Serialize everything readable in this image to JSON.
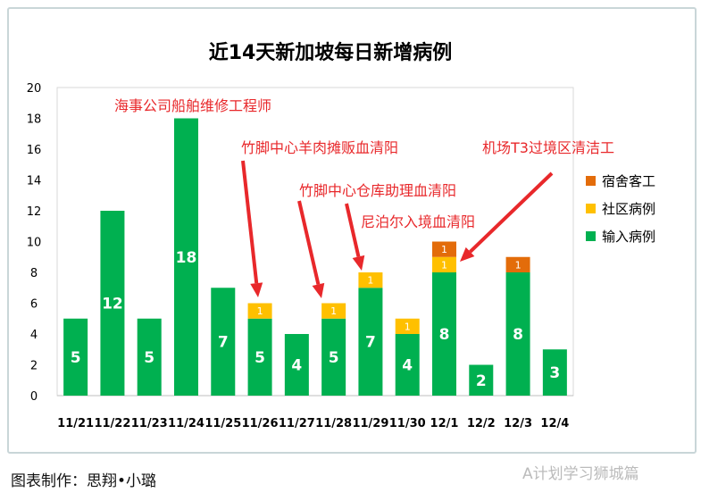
{
  "chart_data": {
    "type": "bar",
    "stacked": true,
    "title": "近14天新加坡每日新增病例",
    "categories": [
      "11/21",
      "11/22",
      "11/23",
      "11/24",
      "11/25",
      "11/26",
      "11/27",
      "11/28",
      "11/29",
      "11/30",
      "12/1",
      "12/2",
      "12/3",
      "12/4"
    ],
    "series": [
      {
        "name": "输入病例",
        "color": "#00b050",
        "values": [
          5,
          12,
          5,
          18,
          7,
          5,
          4,
          5,
          7,
          4,
          8,
          2,
          8,
          3
        ]
      },
      {
        "name": "社区病例",
        "color": "#ffc000",
        "values": [
          0,
          0,
          0,
          0,
          0,
          1,
          0,
          1,
          1,
          1,
          1,
          0,
          0,
          0
        ]
      },
      {
        "name": "宿舍客工",
        "color": "#e36c0a",
        "values": [
          0,
          0,
          0,
          0,
          0,
          0,
          0,
          0,
          0,
          0,
          1,
          0,
          1,
          0
        ]
      }
    ],
    "ylim": [
      0,
      20
    ],
    "yticks": [
      0,
      2,
      4,
      6,
      8,
      10,
      12,
      14,
      16,
      18,
      20
    ],
    "grid": false,
    "legend": "right",
    "annotations": [
      {
        "text": "海事公司船舶维修工程师",
        "category": null
      },
      {
        "text": "竹脚中心羊肉摊贩血清阳",
        "category": "11/26"
      },
      {
        "text": "竹脚中心仓库助理血清阳",
        "category": "11/28"
      },
      {
        "text": "尼泊尔入境血清阳",
        "category": "11/29"
      },
      {
        "text": "机场T3过境区清洁工",
        "category": "12/1"
      }
    ],
    "annotation_color": "#e8282b"
  },
  "footer": {
    "credit": "图表制作：思翔•小璐",
    "watermark": "A计划学习狮城篇"
  }
}
